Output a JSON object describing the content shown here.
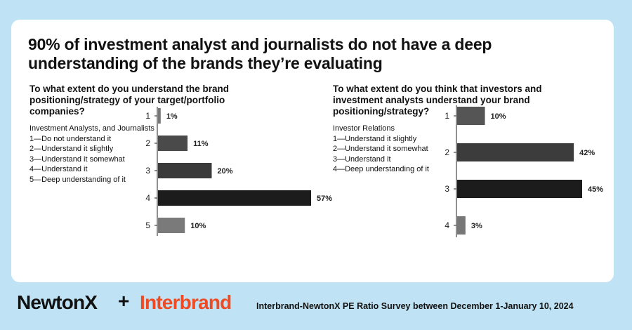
{
  "headline": "90% of investment analyst and journalists do not have a deep understanding of the brands they’re evaluating",
  "left": {
    "question": "To what extent do you understand the brand positioning/strategy of your target/portfolio companies?",
    "group": "Investment Analysts, and Journalists",
    "legend": [
      "1—Do not understand it",
      "2—Understand it slightly",
      "3—Understand it somewhat",
      "4—Understand it",
      "5—Deep understanding of it"
    ]
  },
  "right": {
    "question": "To what extent do you think that investors and investment analysts understand your brand positioning/strategy?",
    "group": "Investor Relations",
    "legend": [
      "1—Understand it slightly",
      "2—Understand it somewhat",
      "3—Understand it",
      "4—Deep understanding of it"
    ]
  },
  "chart_data": [
    {
      "type": "bar",
      "orientation": "horizontal",
      "categories": [
        "1",
        "2",
        "3",
        "4",
        "5"
      ],
      "values": [
        1,
        11,
        20,
        57,
        10
      ],
      "value_labels": [
        "1%",
        "11%",
        "20%",
        "57%",
        "10%"
      ],
      "colors": [
        "#777777",
        "#4a4a4a",
        "#3a3a3a",
        "#1c1c1c",
        "#7a7a7a"
      ],
      "max": 57
    },
    {
      "type": "bar",
      "orientation": "horizontal",
      "categories": [
        "1",
        "2",
        "3",
        "4"
      ],
      "values": [
        10,
        42,
        45,
        3
      ],
      "value_labels": [
        "10%",
        "42%",
        "45%",
        "3%"
      ],
      "colors": [
        "#555555",
        "#3c3c3c",
        "#1c1c1c",
        "#777777"
      ],
      "max": 45
    }
  ],
  "footer": {
    "logo1": "NewtonX",
    "plus": "+",
    "logo2": "Interbrand",
    "source": "Interbrand-NewtonX PE Ratio Survey between December 1-January 10, 2024"
  }
}
